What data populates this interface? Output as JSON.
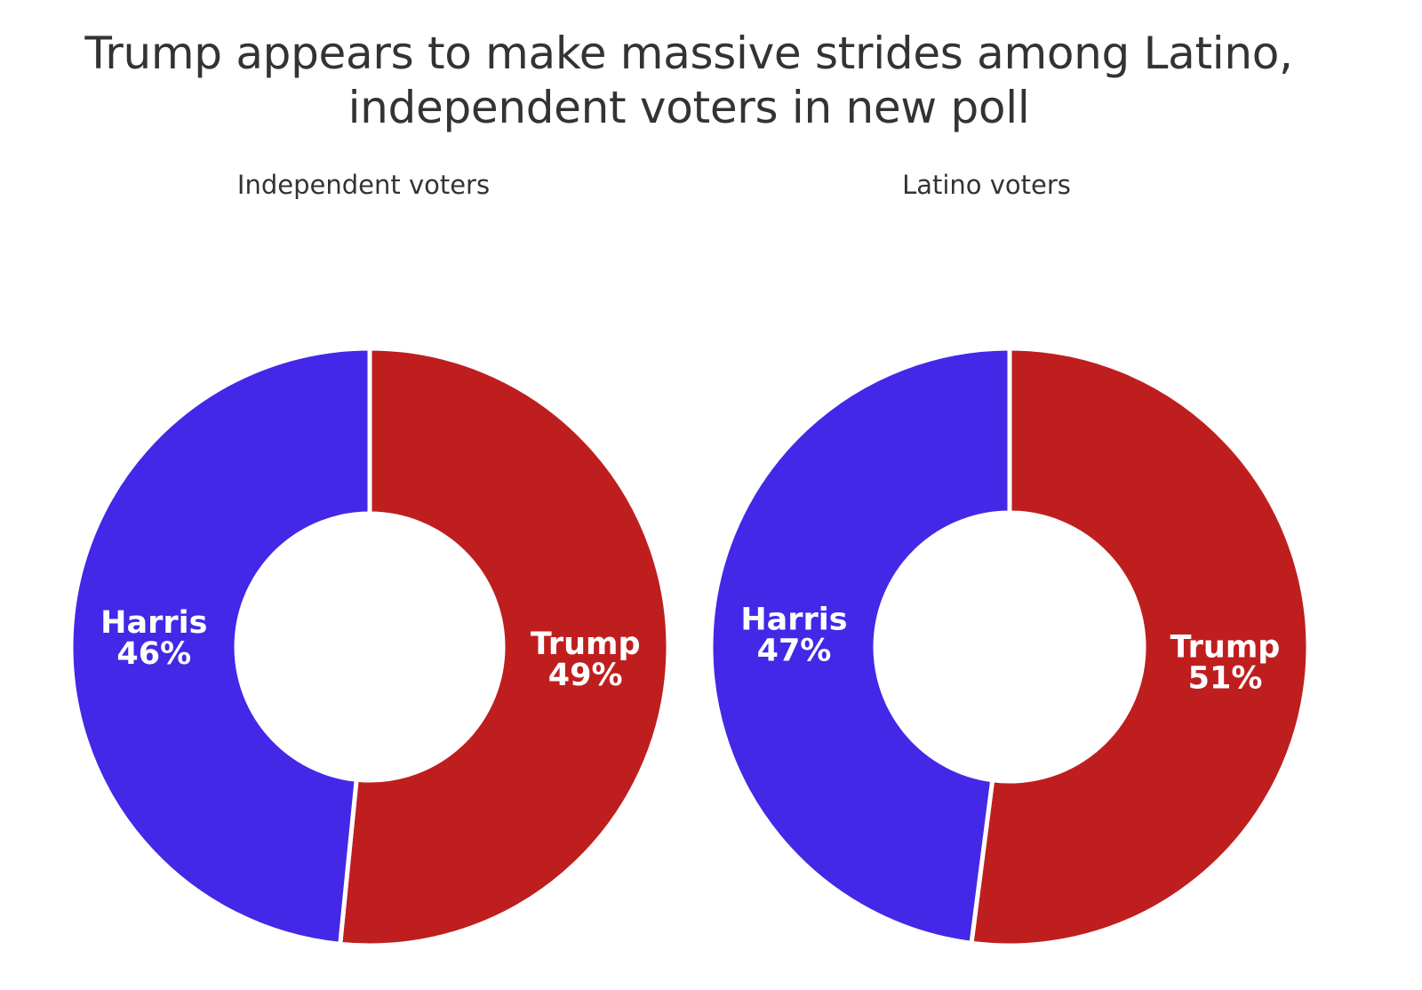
{
  "title_lines": [
    "Trump appears to make massive strides among Latino,",
    "independent voters in new poll"
  ],
  "colors": {
    "Harris": "#4328e7",
    "Trump": "#bf1e1f",
    "separator": "#ffffff"
  },
  "chart_data": [
    {
      "type": "pie",
      "subtitle": "Independent voters",
      "slices": [
        {
          "label": "Trump",
          "value": 49,
          "value_label": "49%"
        },
        {
          "label": "Harris",
          "value": 46,
          "value_label": "46%"
        }
      ],
      "legend": "none"
    },
    {
      "type": "pie",
      "subtitle": "Latino voters",
      "slices": [
        {
          "label": "Trump",
          "value": 51,
          "value_label": "51%"
        },
        {
          "label": "Harris",
          "value": 47,
          "value_label": "47%"
        }
      ],
      "legend": "none"
    }
  ]
}
